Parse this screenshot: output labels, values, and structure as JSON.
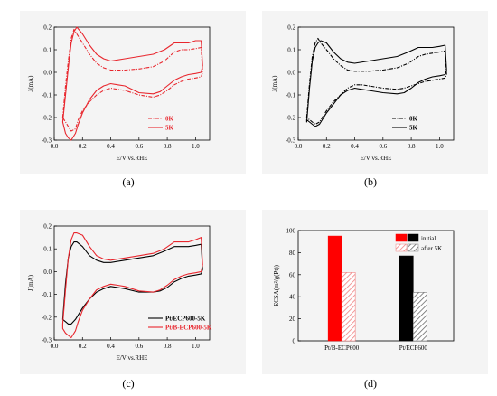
{
  "captions": [
    "(a)",
    "(b)",
    "(c)",
    "(d)"
  ],
  "chart_data": [
    {
      "id": "a",
      "type": "line",
      "xlabel": "E/V vs.RHE",
      "ylabel": "J(mA)",
      "xlim": [
        0.0,
        1.1
      ],
      "ylim": [
        -0.3,
        0.2
      ],
      "xticks": [
        "0.0",
        "0.2",
        "0.4",
        "0.6",
        "0.8",
        "1.0"
      ],
      "yticks": [
        "-0.3",
        "-0.2",
        "-0.1",
        "0.0",
        "0.1",
        "0.2"
      ],
      "legend_position": "bottom-right",
      "series": [
        {
          "name": "0K",
          "color": "#e8262d",
          "dash": "dash-dot",
          "x": [
            0.06,
            0.08,
            0.1,
            0.12,
            0.14,
            0.16,
            0.2,
            0.25,
            0.3,
            0.35,
            0.4,
            0.5,
            0.6,
            0.7,
            0.78,
            0.85,
            0.9,
            0.95,
            1.0,
            1.04,
            1.05,
            1.04,
            1.0,
            0.95,
            0.9,
            0.85,
            0.8,
            0.75,
            0.7,
            0.6,
            0.5,
            0.45,
            0.4,
            0.35,
            0.3,
            0.25,
            0.2,
            0.17,
            0.15,
            0.12,
            0.1,
            0.08,
            0.06
          ],
          "y": [
            -0.2,
            -0.06,
            0.05,
            0.15,
            0.19,
            0.17,
            0.13,
            0.08,
            0.04,
            0.02,
            0.01,
            0.01,
            0.015,
            0.025,
            0.05,
            0.09,
            0.1,
            0.1,
            0.105,
            0.11,
            0.0,
            -0.02,
            -0.025,
            -0.03,
            -0.04,
            -0.055,
            -0.08,
            -0.1,
            -0.11,
            -0.1,
            -0.08,
            -0.075,
            -0.07,
            -0.08,
            -0.1,
            -0.13,
            -0.17,
            -0.21,
            -0.25,
            -0.26,
            -0.24,
            -0.22,
            -0.2
          ]
        },
        {
          "name": "5K",
          "color": "#e8262d",
          "dash": "solid",
          "x": [
            0.06,
            0.08,
            0.1,
            0.12,
            0.14,
            0.16,
            0.2,
            0.25,
            0.3,
            0.35,
            0.4,
            0.5,
            0.6,
            0.7,
            0.78,
            0.85,
            0.9,
            0.95,
            1.0,
            1.04,
            1.05,
            1.04,
            1.0,
            0.95,
            0.9,
            0.85,
            0.8,
            0.75,
            0.7,
            0.6,
            0.5,
            0.45,
            0.4,
            0.35,
            0.3,
            0.25,
            0.2,
            0.17,
            0.15,
            0.12,
            0.1,
            0.08,
            0.06
          ],
          "y": [
            -0.22,
            -0.1,
            0.02,
            0.13,
            0.18,
            0.2,
            0.17,
            0.12,
            0.08,
            0.06,
            0.05,
            0.06,
            0.07,
            0.08,
            0.1,
            0.13,
            0.13,
            0.13,
            0.14,
            0.14,
            0.03,
            0.0,
            -0.005,
            -0.01,
            -0.02,
            -0.035,
            -0.06,
            -0.085,
            -0.095,
            -0.09,
            -0.06,
            -0.055,
            -0.05,
            -0.06,
            -0.08,
            -0.12,
            -0.18,
            -0.23,
            -0.27,
            -0.3,
            -0.29,
            -0.27,
            -0.22
          ]
        }
      ]
    },
    {
      "id": "b",
      "type": "line",
      "xlabel": "E/V vs.RHE",
      "ylabel": "J(mA)",
      "xlim": [
        0.0,
        1.1
      ],
      "ylim": [
        -0.3,
        0.2
      ],
      "xticks": [
        "0.0",
        "0.2",
        "0.4",
        "0.6",
        "0.8",
        "1.0"
      ],
      "yticks": [
        "-0.3",
        "-0.2",
        "-0.1",
        "0.0",
        "0.1",
        "0.2"
      ],
      "legend_position": "bottom-right",
      "series": [
        {
          "name": "0K",
          "color": "#000000",
          "dash": "dash-dot",
          "x": [
            0.06,
            0.08,
            0.1,
            0.12,
            0.14,
            0.16,
            0.2,
            0.25,
            0.3,
            0.35,
            0.4,
            0.5,
            0.6,
            0.7,
            0.78,
            0.85,
            0.9,
            0.95,
            1.0,
            1.04,
            1.05,
            1.04,
            1.0,
            0.95,
            0.9,
            0.85,
            0.8,
            0.75,
            0.7,
            0.6,
            0.5,
            0.45,
            0.4,
            0.35,
            0.3,
            0.25,
            0.2,
            0.17,
            0.15,
            0.12,
            0.1,
            0.08,
            0.06
          ],
          "y": [
            -0.2,
            -0.05,
            0.07,
            0.13,
            0.15,
            0.13,
            0.1,
            0.06,
            0.03,
            0.01,
            0.005,
            0.005,
            0.01,
            0.02,
            0.04,
            0.07,
            0.08,
            0.085,
            0.09,
            0.095,
            -0.01,
            -0.025,
            -0.03,
            -0.035,
            -0.04,
            -0.05,
            -0.06,
            -0.07,
            -0.075,
            -0.07,
            -0.06,
            -0.055,
            -0.055,
            -0.07,
            -0.1,
            -0.13,
            -0.17,
            -0.2,
            -0.22,
            -0.23,
            -0.22,
            -0.21,
            -0.2
          ]
        },
        {
          "name": "5K",
          "color": "#000000",
          "dash": "solid",
          "x": [
            0.06,
            0.08,
            0.1,
            0.12,
            0.14,
            0.16,
            0.2,
            0.25,
            0.3,
            0.35,
            0.4,
            0.5,
            0.6,
            0.7,
            0.78,
            0.85,
            0.9,
            0.95,
            1.0,
            1.04,
            1.05,
            1.04,
            1.0,
            0.95,
            0.9,
            0.85,
            0.8,
            0.75,
            0.7,
            0.6,
            0.5,
            0.45,
            0.4,
            0.35,
            0.3,
            0.25,
            0.2,
            0.17,
            0.15,
            0.12,
            0.1,
            0.08,
            0.06
          ],
          "y": [
            -0.22,
            -0.07,
            0.05,
            0.11,
            0.13,
            0.14,
            0.13,
            0.09,
            0.06,
            0.045,
            0.04,
            0.05,
            0.06,
            0.07,
            0.09,
            0.11,
            0.11,
            0.11,
            0.115,
            0.12,
            0.01,
            -0.01,
            -0.015,
            -0.02,
            -0.03,
            -0.045,
            -0.07,
            -0.09,
            -0.095,
            -0.09,
            -0.08,
            -0.075,
            -0.07,
            -0.08,
            -0.1,
            -0.14,
            -0.18,
            -0.21,
            -0.23,
            -0.24,
            -0.23,
            -0.22,
            -0.21
          ]
        }
      ]
    },
    {
      "id": "c",
      "type": "line",
      "xlabel": "E/V vs.RHE",
      "ylabel": "J(mA)",
      "xlim": [
        0.0,
        1.1
      ],
      "ylim": [
        -0.3,
        0.2
      ],
      "xticks": [
        "0.0",
        "0.2",
        "0.4",
        "0.6",
        "0.8",
        "1.0"
      ],
      "yticks": [
        "-0.3",
        "-0.2",
        "-0.1",
        "0.0",
        "0.1",
        "0.2"
      ],
      "legend_position": "bottom-right",
      "series": [
        {
          "name": "Pt/ECP600-5K",
          "color": "#000000",
          "dash": "solid",
          "x": [
            0.06,
            0.08,
            0.1,
            0.12,
            0.14,
            0.16,
            0.2,
            0.25,
            0.3,
            0.35,
            0.4,
            0.5,
            0.6,
            0.7,
            0.78,
            0.85,
            0.9,
            0.95,
            1.0,
            1.04,
            1.05,
            1.04,
            1.0,
            0.95,
            0.9,
            0.85,
            0.8,
            0.75,
            0.7,
            0.6,
            0.5,
            0.45,
            0.4,
            0.35,
            0.3,
            0.25,
            0.2,
            0.17,
            0.15,
            0.12,
            0.1,
            0.08,
            0.06
          ],
          "y": [
            -0.21,
            -0.05,
            0.06,
            0.11,
            0.13,
            0.13,
            0.11,
            0.07,
            0.05,
            0.04,
            0.04,
            0.05,
            0.06,
            0.07,
            0.09,
            0.11,
            0.11,
            0.11,
            0.115,
            0.12,
            0.01,
            -0.01,
            -0.015,
            -0.02,
            -0.03,
            -0.045,
            -0.07,
            -0.085,
            -0.09,
            -0.09,
            -0.075,
            -0.07,
            -0.065,
            -0.075,
            -0.09,
            -0.12,
            -0.16,
            -0.19,
            -0.21,
            -0.23,
            -0.23,
            -0.22,
            -0.21
          ]
        },
        {
          "name": "Pt/B-ECP600-5K",
          "color": "#e8262d",
          "dash": "solid",
          "x": [
            0.06,
            0.08,
            0.1,
            0.12,
            0.14,
            0.16,
            0.2,
            0.25,
            0.3,
            0.35,
            0.4,
            0.5,
            0.6,
            0.7,
            0.78,
            0.85,
            0.9,
            0.95,
            1.0,
            1.04,
            1.05,
            1.04,
            1.0,
            0.95,
            0.9,
            0.85,
            0.8,
            0.75,
            0.7,
            0.6,
            0.5,
            0.45,
            0.4,
            0.35,
            0.3,
            0.25,
            0.2,
            0.17,
            0.15,
            0.12,
            0.1,
            0.08,
            0.06
          ],
          "y": [
            -0.23,
            -0.08,
            0.06,
            0.14,
            0.17,
            0.17,
            0.16,
            0.11,
            0.07,
            0.055,
            0.05,
            0.06,
            0.07,
            0.08,
            0.1,
            0.13,
            0.13,
            0.13,
            0.14,
            0.15,
            0.03,
            0.0,
            -0.005,
            -0.01,
            -0.02,
            -0.035,
            -0.06,
            -0.08,
            -0.09,
            -0.085,
            -0.065,
            -0.06,
            -0.055,
            -0.065,
            -0.08,
            -0.12,
            -0.17,
            -0.22,
            -0.26,
            -0.29,
            -0.28,
            -0.27,
            -0.25
          ]
        }
      ]
    },
    {
      "id": "d",
      "type": "bar",
      "ylabel": "ECSA(m²/g(Pt))",
      "ylim": [
        0,
        100
      ],
      "yticks": [
        "0",
        "20",
        "40",
        "60",
        "80",
        "100"
      ],
      "categories": [
        "Pt/B-ECP600",
        "Pt/ECP600"
      ],
      "legend_position": "top-right",
      "series": [
        {
          "name": "initial",
          "fill": "solid",
          "colors": [
            "#ff0000",
            "#000000"
          ],
          "values": [
            95,
            77
          ]
        },
        {
          "name": "after 5K",
          "fill": "hatched",
          "colors": [
            "#f08080",
            "#7a7a7a"
          ],
          "values": [
            62,
            44
          ]
        }
      ]
    }
  ]
}
